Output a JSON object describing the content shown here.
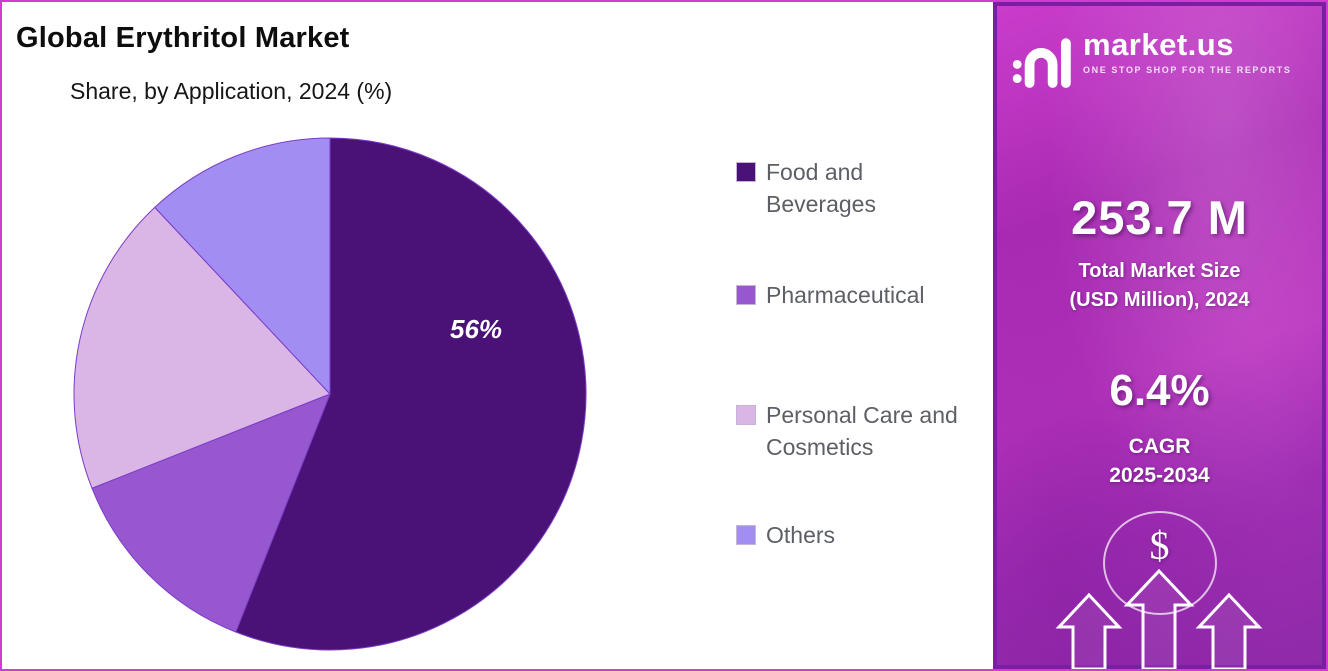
{
  "header": {
    "title": "Global Erythritol Market",
    "subtitle": "Share, by Application, 2024 (%)"
  },
  "chart_data": {
    "type": "pie",
    "title": "Global Erythritol Market Share, by Application, 2024 (%)",
    "start_angle_deg": 0,
    "direction": "clockwise",
    "legend_position": "right",
    "data_label": {
      "text": "56%",
      "slice": "Food and Beverages"
    },
    "slices": [
      {
        "label": "Food and Beverages",
        "value": 56,
        "color": "#4a1277"
      },
      {
        "label": "Pharmaceutical",
        "value": 13,
        "color": "#9657cf"
      },
      {
        "label": "Personal Care and Cosmetics",
        "value": 19,
        "color": "#d9b6e6"
      },
      {
        "label": "Others",
        "value": 12,
        "color": "#a28df2"
      }
    ]
  },
  "sidebar": {
    "brand": {
      "name": "market.us",
      "tagline": "ONE STOP SHOP FOR THE REPORTS"
    },
    "stats": [
      {
        "value": "253.7 M",
        "label_lines": [
          "Total Market Size",
          "(USD Million), 2024"
        ]
      },
      {
        "value": "6.4%",
        "label_lines": [
          "CAGR",
          "2025-2034"
        ]
      }
    ],
    "dollar_symbol": "$"
  },
  "colors": {
    "outer_border": "#d23ad0",
    "sidebar_border": "#7b1fa2",
    "sidebar_gradient_top": "#c93ccb",
    "sidebar_gradient_bottom": "#8e2aa8",
    "pie_stroke": "#7d3cc8",
    "legend_text": "#5c5f66"
  }
}
